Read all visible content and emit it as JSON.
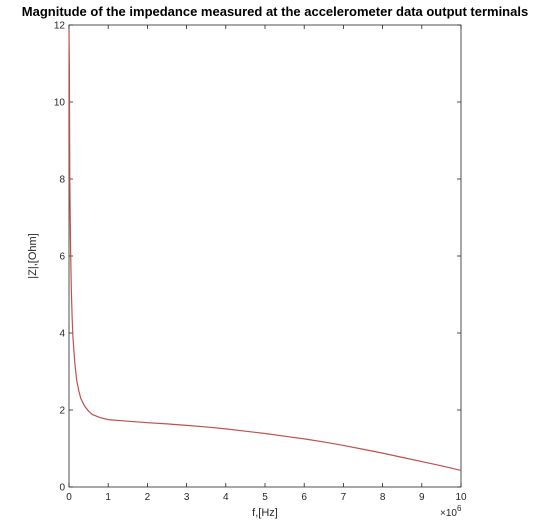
{
  "chart_data": {
    "type": "line",
    "title": "Magnitude of the impedance measured at the accelerometer data output terminals",
    "xlabel": "f,[Hz]",
    "ylabel": "|Z|,[Ohm]",
    "x_multiplier_base": "×10",
    "x_multiplier_exp": "6",
    "xlim": [
      0,
      10
    ],
    "ylim": [
      0,
      12
    ],
    "xticks": [
      0,
      1,
      2,
      3,
      4,
      5,
      6,
      7,
      8,
      9,
      10
    ],
    "yticks": [
      0,
      2,
      4,
      6,
      8,
      10,
      12
    ],
    "grid": false,
    "series": [
      {
        "color": "#c0504d",
        "x": [
          0.0,
          0.01,
          0.02,
          0.04,
          0.06,
          0.08,
          0.1,
          0.15,
          0.2,
          0.25,
          0.3,
          0.4,
          0.5,
          0.6,
          0.8,
          1.0,
          1.5,
          2.0,
          2.5,
          3.0,
          3.5,
          4.0,
          4.5,
          5.0,
          5.5,
          6.0,
          6.5,
          7.0,
          7.5,
          8.0,
          8.5,
          9.0,
          9.5,
          10.0
        ],
        "y": [
          11.9,
          10.9,
          8.0,
          6.2,
          5.1,
          4.4,
          3.9,
          3.2,
          2.75,
          2.5,
          2.3,
          2.1,
          1.97,
          1.88,
          1.8,
          1.75,
          1.71,
          1.67,
          1.64,
          1.6,
          1.56,
          1.51,
          1.45,
          1.39,
          1.32,
          1.25,
          1.17,
          1.08,
          0.98,
          0.88,
          0.77,
          0.66,
          0.55,
          0.43
        ]
      }
    ]
  }
}
